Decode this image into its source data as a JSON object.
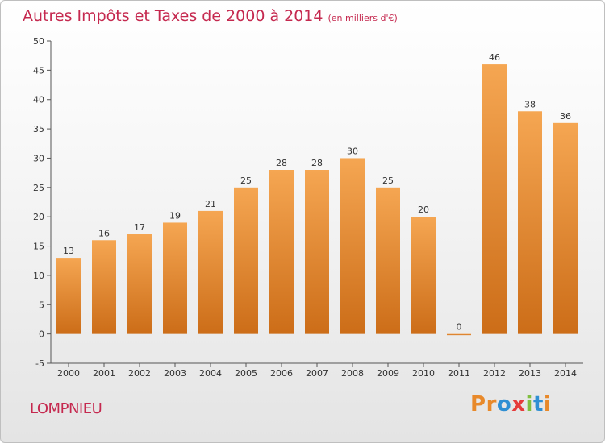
{
  "title": "Autres Impôts et Taxes de 2000 à 2014",
  "subtitle": "(en milliers d'€)",
  "place": "LOMPNIEU",
  "logo": {
    "text": "Proxiti",
    "letters": [
      "P",
      "r",
      "o",
      "x",
      "i",
      "t",
      "i"
    ],
    "colors": [
      "#e8892a",
      "#e8892a",
      "#2f8fd3",
      "#e53b3b",
      "#7fbf3f",
      "#2f8fd3",
      "#e8892a"
    ]
  },
  "colors": {
    "title": "#c5294f",
    "bar_top": "#f5a652",
    "bar_bottom": "#cc6d18"
  },
  "chart_data": {
    "type": "bar",
    "categories": [
      "2000",
      "2001",
      "2002",
      "2003",
      "2004",
      "2005",
      "2006",
      "2007",
      "2008",
      "2009",
      "2010",
      "2011",
      "2012",
      "2013",
      "2014"
    ],
    "values": [
      13,
      16,
      17,
      19,
      21,
      25,
      28,
      28,
      30,
      25,
      20,
      0,
      46,
      38,
      36
    ],
    "ylim": [
      -5,
      50
    ],
    "yticks": [
      -5,
      0,
      5,
      10,
      15,
      20,
      25,
      30,
      35,
      40,
      45,
      50
    ],
    "grid": false
  }
}
